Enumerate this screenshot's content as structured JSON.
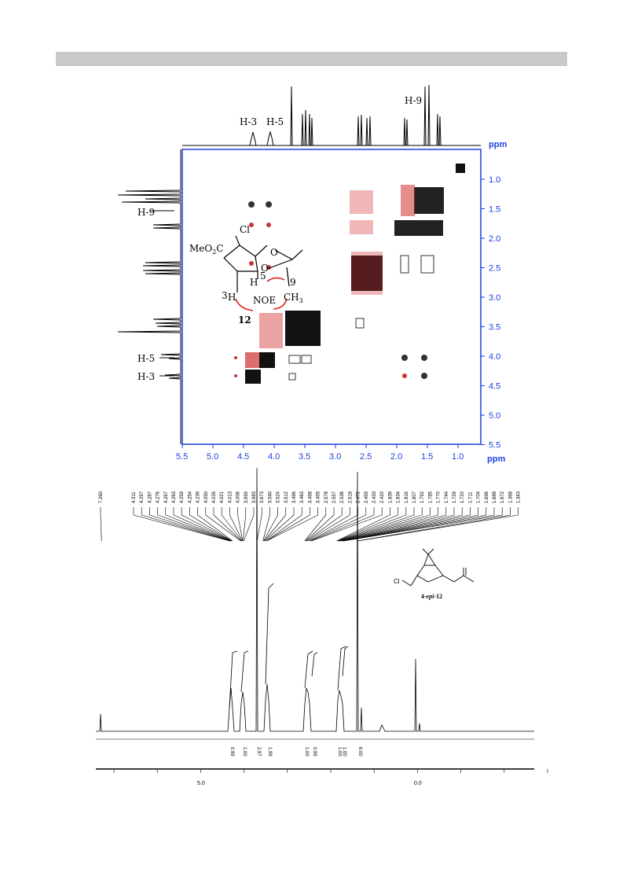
{
  "noesy": {
    "top_labels": {
      "h3": "H-3",
      "h5": "H-5",
      "h9": "H-9"
    },
    "left_labels": {
      "h9": "H-9",
      "h5": "H-5",
      "h3": "H-3"
    },
    "unit": "ppm",
    "x_ticks": [
      "5.5",
      "5.0",
      "4.5",
      "4.0",
      "3.5",
      "3.0",
      "2.5",
      "2.0",
      "1.5",
      "1.0"
    ],
    "y_ticks": [
      "1.0",
      "1.5",
      "2.0",
      "2.5",
      "3.0",
      "3.5",
      "4.0",
      "4.5",
      "5.0",
      "5.5"
    ],
    "structure": {
      "cl": "Cl",
      "ester": "MeO",
      "ester_sub": "2",
      "ester_c": "C",
      "o_ring": "O",
      "o_ring2": "O",
      "h": "H",
      "h3": "H",
      "num3": "3",
      "num5": "5",
      "num9": "9",
      "ch3": "CH",
      "ch3_sub": "3",
      "noe": "NOE",
      "compound": "12"
    }
  },
  "h1nmr": {
    "peak_labels": [
      "7.260",
      "4.311",
      "4.297",
      "4.287",
      "4.276",
      "4.267",
      "4.263",
      "4.259",
      "4.254",
      "4.239",
      "4.050",
      "4.035",
      "4.021",
      "4.013",
      "4.006",
      "3.999",
      "3.983",
      "3.673",
      "3.540",
      "3.524",
      "3.512",
      "3.496",
      "3.463",
      "3.458",
      "3.455",
      "2.578",
      "2.557",
      "2.538",
      "2.518",
      "2.472",
      "2.459",
      "2.433",
      "2.420",
      "1.839",
      "1.834",
      "1.816",
      "1.807",
      "1.792",
      "1.785",
      "1.770",
      "1.744",
      "1.729",
      "1.720",
      "1.711",
      "1.704",
      "1.696",
      "1.688",
      "1.672",
      "1.368",
      "1.343"
    ],
    "integrals": [
      "0.99",
      "1.00",
      "2.97",
      "1.99",
      "1.00",
      "0.99",
      "1.00",
      "1.00",
      "6.00"
    ],
    "axis_ticks": [
      "5.0",
      "0.0"
    ],
    "structure": {
      "cl": "Cl",
      "compound_prefix": "4-",
      "compound_epi": "epi",
      "compound_suffix": "-12"
    }
  }
}
